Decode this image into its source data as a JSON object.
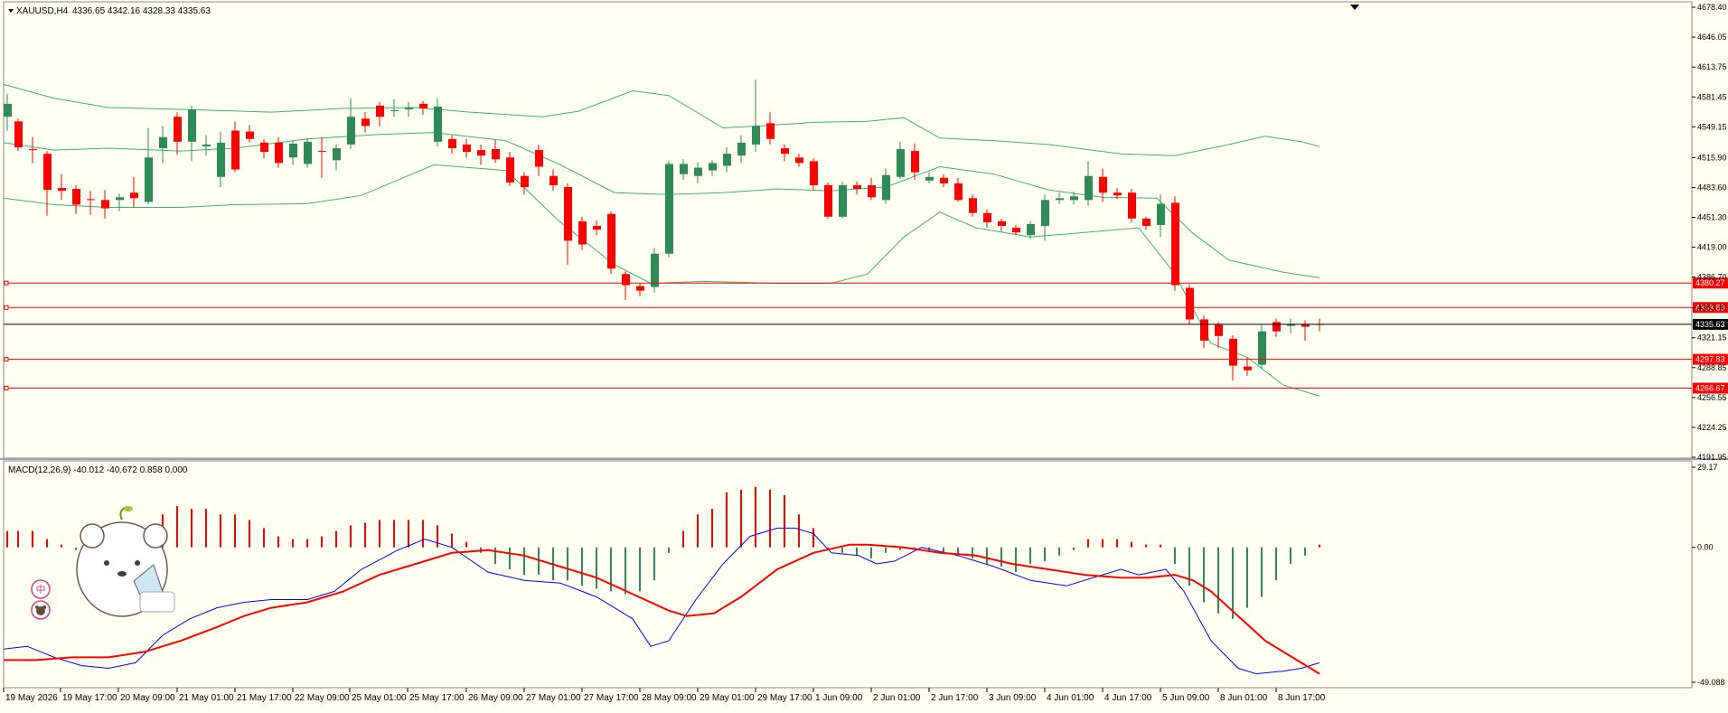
{
  "main_pane": {
    "title": "XAUUSD,H4",
    "ohlc": "4336.65 4342.16 4328.33 4335.63",
    "price_labels": [
      "4678.40",
      "4646.05",
      "4613.75",
      "4581.45",
      "4549.15",
      "4515.90",
      "4483.60",
      "4451.30",
      "4419.00",
      "4386.70",
      "4353.40",
      "4321.15",
      "4288.85",
      "4256.55",
      "4224.25",
      "4191.95"
    ],
    "levels": [
      {
        "name": "level-4380",
        "label": "4380.27",
        "price": 4380.27
      },
      {
        "name": "level-4353",
        "label": "4353.83",
        "price": 4353.83
      },
      {
        "name": "level-4297",
        "label": "4297.83",
        "price": 4297.83
      },
      {
        "name": "level-4266",
        "label": "4266.67",
        "price": 4266.67
      }
    ],
    "current_price": {
      "label": "4335.63",
      "price": 4335.63
    }
  },
  "macd_pane": {
    "title": "MACD(12,26,9) -40.012 -40.672 0.858 0.000",
    "scale_labels": [
      "29.17",
      "0.00",
      "-49.088"
    ]
  },
  "time_axis": {
    "labels": [
      "19 May 2026",
      "19 May 17:00",
      "20 May 09:00",
      "21 May 01:00",
      "21 May 17:00",
      "22 May 09:00",
      "25 May 01:00",
      "25 May 17:00",
      "26 May 09:00",
      "27 May 01:00",
      "27 May 17:00",
      "28 May 09:00",
      "29 May 01:00",
      "29 May 17:00",
      "1 Jun 09:00",
      "2 Jun 01:00",
      "2 Jun 17:00",
      "3 Jun 09:00",
      "4 Jun 01:00",
      "4 Jun 17:00",
      "5 Jun 09:00",
      "8 Jun 01:00",
      "8 Jun 17:00"
    ]
  },
  "colors": {
    "bull": "#2e8b57",
    "bear": "#ff0000",
    "band": "#3cb371",
    "level": "#ff0000",
    "macd_line": "#0000ff",
    "signal_line": "#ff0000",
    "background": "#fffff2"
  },
  "sticker": {
    "badge_top": "中",
    "badge_bottom_icon": "bear-face-icon"
  }
}
